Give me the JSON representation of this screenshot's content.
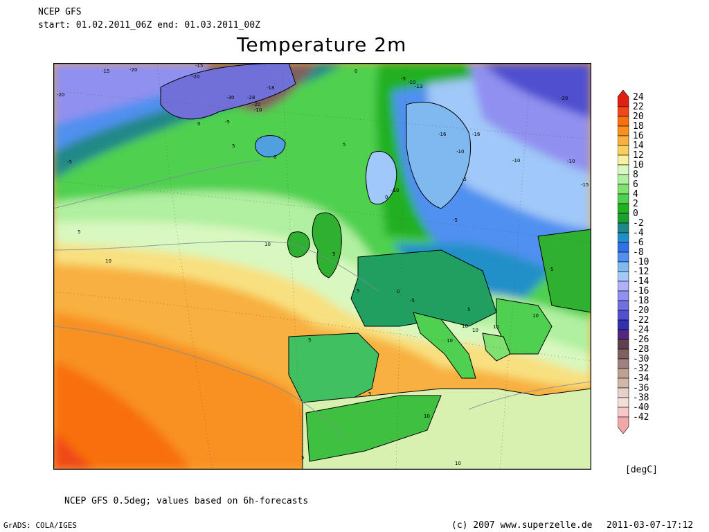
{
  "header": {
    "model": "NCEP GFS",
    "period": "start: 01.02.2011_06Z   end: 01.03.2011_00Z",
    "title": "Temperature 2m"
  },
  "footer": {
    "note": "NCEP GFS 0.5deg; values based on 6h-forecasts",
    "grads": "GrADS: COLA/IGES",
    "copyright": "(c) 2007 www.superzelle.de",
    "timestamp": "2011-03-07-17:12"
  },
  "legend": {
    "unit": "[degC]",
    "levels": [
      "24",
      "22",
      "20",
      "18",
      "16",
      "14",
      "12",
      "10",
      "8",
      "6",
      "4",
      "2",
      "0",
      "-2",
      "-4",
      "-6",
      "-8",
      "-10",
      "-12",
      "-14",
      "-16",
      "-18",
      "-20",
      "-22",
      "-24",
      "-26",
      "-28",
      "-30",
      "-32",
      "-34",
      "-36",
      "-38",
      "-40",
      "-42"
    ],
    "colors": [
      "#e02010",
      "#f04818",
      "#f87010",
      "#f89020",
      "#f8b040",
      "#f8d060",
      "#f8f0a0",
      "#d8f8c0",
      "#b0f0a0",
      "#80e070",
      "#50d050",
      "#20b020",
      "#18a030",
      "#208888",
      "#2090c8",
      "#3070e8",
      "#5090f0",
      "#80b8f0",
      "#a0c8f8",
      "#b0b0f8",
      "#9090f0",
      "#7070e0",
      "#5050d0",
      "#3030b0",
      "#502880",
      "#604050",
      "#806060",
      "#a08080",
      "#c0a090",
      "#d0b8a8",
      "#e8d0c8",
      "#f0e0d8",
      "#f8c8c8",
      "#f0a8a8"
    ]
  },
  "map": {
    "contour_labels": [
      "-15",
      "-20",
      "-15",
      "-20",
      "-20",
      "-30",
      "-28",
      "-18",
      "-20",
      "-10",
      "-5",
      "0",
      "-5",
      "-10",
      "-13",
      "-20",
      "-5",
      "5",
      "0",
      "5",
      "0",
      "-10",
      "-16",
      "-16",
      "-10",
      "-15",
      "-10",
      "0",
      "-5",
      "5",
      "10",
      "10",
      "5",
      "5",
      "0",
      "-5",
      "5",
      "10",
      "10",
      "10",
      "5",
      "10",
      "10",
      "5",
      "10",
      "5",
      "10",
      "-10",
      "5",
      "-5"
    ]
  }
}
